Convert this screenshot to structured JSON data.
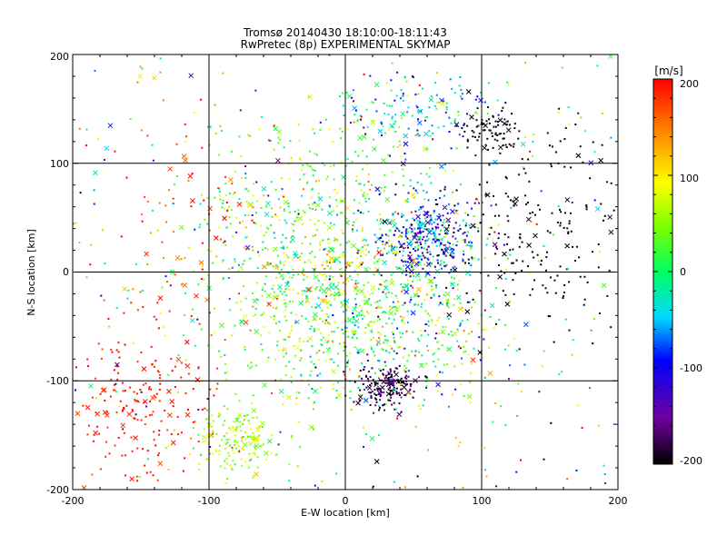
{
  "chart_data": {
    "type": "scatter",
    "title": "Tromsø 20140430 18:10:00-18:11:43",
    "subtitle": "RwPretec (8p) EXPERIMENTAL SKYMAP",
    "xlabel": "E-W location [km]",
    "ylabel": "N-S location [km]",
    "xlim": [
      -200,
      200
    ],
    "ylim": [
      -200,
      200
    ],
    "xticks": [
      "-200",
      "-100",
      "0",
      "100",
      "200"
    ],
    "yticks": [
      "-200",
      "-100",
      "0",
      "100",
      "200"
    ],
    "grid": true,
    "colorbar": {
      "label": "[m/s]",
      "range": [
        -200,
        200
      ],
      "ticks": [
        "200",
        "100",
        "0",
        "-100",
        "-200"
      ],
      "placement": "right"
    },
    "marker_types": [
      "dot",
      "x"
    ],
    "clusters": [
      {
        "x": -20,
        "y": 5,
        "spread_x": 45,
        "spread_y": 65,
        "count": 900,
        "velocity_mean": 40,
        "velocity_spread": 90
      },
      {
        "x": 60,
        "y": 30,
        "spread_x": 20,
        "spread_y": 20,
        "count": 350,
        "velocity_mean": -90,
        "velocity_spread": 80
      },
      {
        "x": 30,
        "y": -105,
        "spread_x": 12,
        "spread_y": 10,
        "count": 180,
        "velocity_mean": -180,
        "velocity_spread": 30
      },
      {
        "x": 105,
        "y": 130,
        "spread_x": 12,
        "spread_y": 10,
        "count": 80,
        "velocity_mean": -195,
        "velocity_spread": 10
      },
      {
        "x": 145,
        "y": 40,
        "spread_x": 35,
        "spread_y": 45,
        "count": 200,
        "velocity_mean": -195,
        "velocity_spread": 10
      },
      {
        "x": 50,
        "y": 145,
        "spread_x": 25,
        "spread_y": 20,
        "count": 150,
        "velocity_mean": -40,
        "velocity_spread": 110
      },
      {
        "x": -80,
        "y": -155,
        "spread_x": 18,
        "spread_y": 15,
        "count": 160,
        "velocity_mean": 60,
        "velocity_spread": 50
      },
      {
        "x": -150,
        "y": -120,
        "spread_x": 25,
        "spread_y": 35,
        "count": 180,
        "velocity_mean": 190,
        "velocity_spread": 15
      },
      {
        "x": -120,
        "y": 40,
        "spread_x": 45,
        "spread_y": 80,
        "count": 100,
        "velocity_mean": 170,
        "velocity_spread": 40
      },
      {
        "x": 40,
        "y": -40,
        "spread_x": 40,
        "spread_y": 40,
        "count": 400,
        "velocity_mean": 20,
        "velocity_spread": 120
      },
      {
        "x": 0,
        "y": 0,
        "spread_x": 200,
        "spread_y": 200,
        "count": 300,
        "uniform": true,
        "velocity_mean": 0,
        "velocity_spread": 200
      }
    ]
  }
}
